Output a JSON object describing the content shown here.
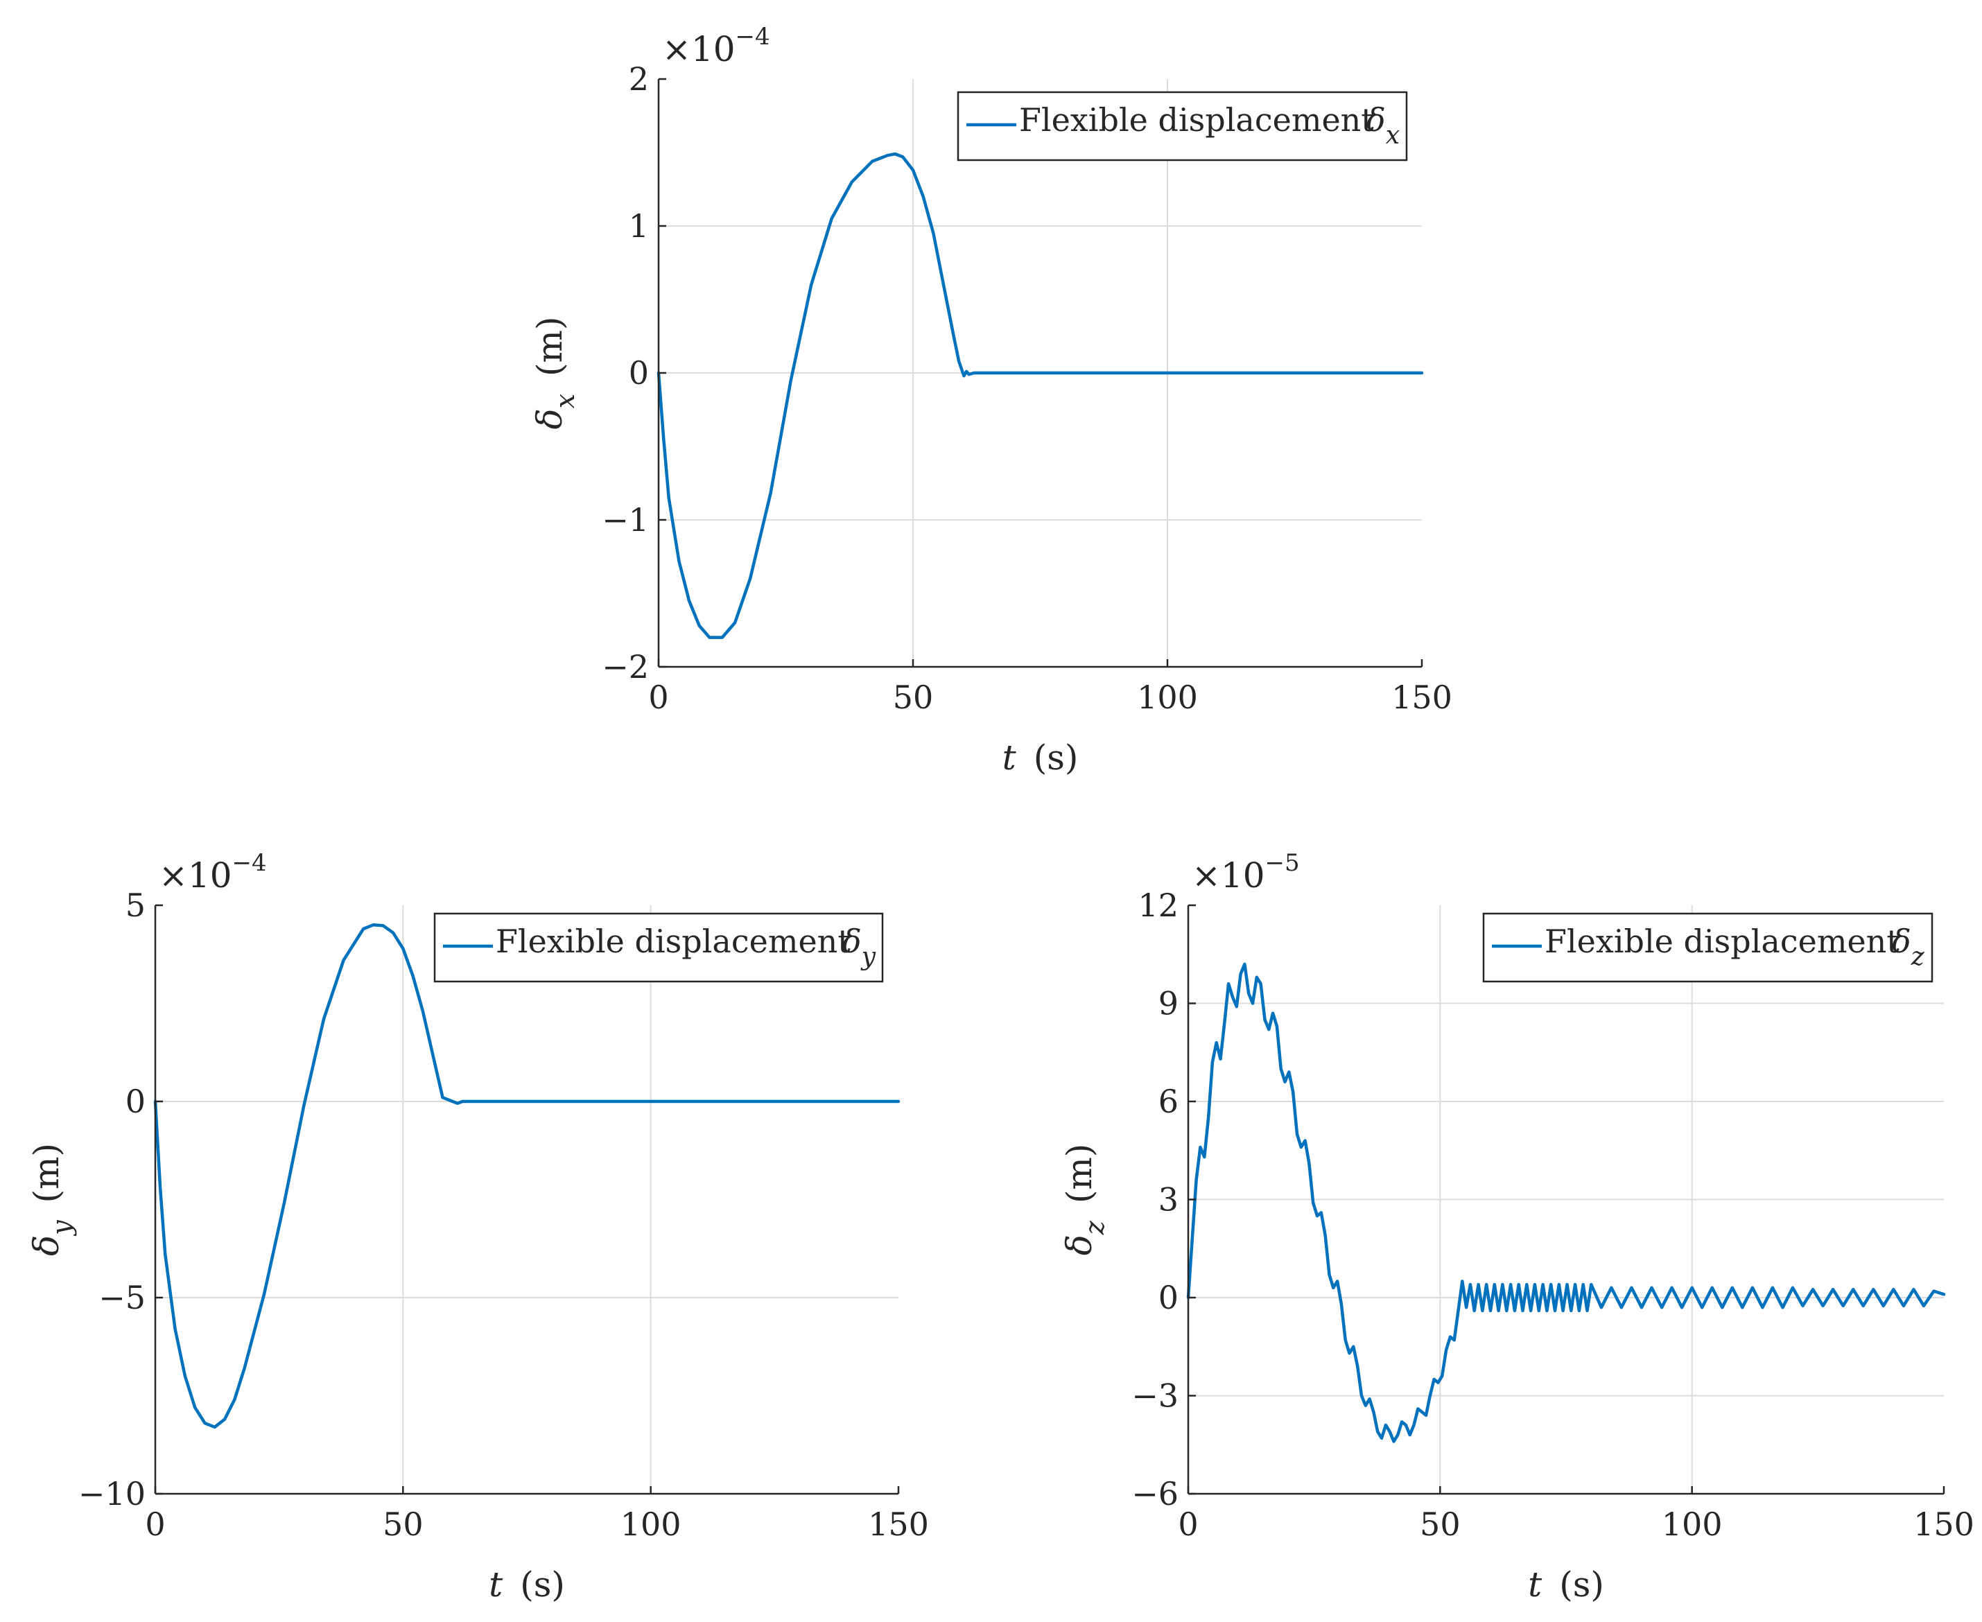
{
  "colors": {
    "line": "#0072BD",
    "grid": "#DCDCDC",
    "axis": "#262626"
  },
  "chart_data": [
    {
      "type": "line",
      "id": "dx",
      "xlabel": {
        "var": "t",
        "unit": "(s)"
      },
      "ylabel": {
        "var": "δ",
        "sub": "x",
        "unit": "(m)"
      },
      "legend": {
        "text": "Flexible displacement",
        "sym": "δ",
        "sub": "x",
        "placement": "top-right"
      },
      "exponent": {
        "base": "×10",
        "power": "−4"
      },
      "xlim": [
        0,
        150
      ],
      "ylim": [
        -2,
        2
      ],
      "xticks": [
        0,
        50,
        100,
        150
      ],
      "yticks": [
        -2,
        -1,
        0,
        1,
        2
      ],
      "xtick_labels": [
        "0",
        "50",
        "100",
        "150"
      ],
      "ytick_labels": [
        "−2",
        "−1",
        "0",
        "1",
        "2"
      ],
      "grid": true,
      "series": [
        {
          "x": [
            0,
            1,
            2,
            4,
            6,
            8,
            10,
            12.5,
            15,
            18,
            22,
            26,
            30,
            34,
            38,
            42,
            45,
            46.5,
            48,
            50,
            52,
            54,
            56,
            58,
            59,
            60,
            60.5,
            61,
            62,
            70,
            90,
            120,
            150
          ],
          "values": [
            0,
            -0.45,
            -0.85,
            -1.28,
            -1.55,
            -1.72,
            -1.8,
            -1.8,
            -1.7,
            -1.4,
            -0.82,
            -0.05,
            0.6,
            1.05,
            1.3,
            1.44,
            1.48,
            1.49,
            1.47,
            1.38,
            1.2,
            0.95,
            0.6,
            0.25,
            0.08,
            -0.02,
            0.01,
            -0.01,
            0,
            0,
            0,
            0,
            0
          ]
        }
      ]
    },
    {
      "type": "line",
      "id": "dy",
      "xlabel": {
        "var": "t",
        "unit": "(s)"
      },
      "ylabel": {
        "var": "δ",
        "sub": "y",
        "unit": "(m)"
      },
      "legend": {
        "text": "Flexible displacement",
        "sym": "δ",
        "sub": "y",
        "placement": "top-right"
      },
      "exponent": {
        "base": "×10",
        "power": "−4"
      },
      "xlim": [
        0,
        150
      ],
      "ylim": [
        -10,
        5
      ],
      "xticks": [
        0,
        50,
        100,
        150
      ],
      "yticks": [
        -10,
        -5,
        0,
        5
      ],
      "xtick_labels": [
        "0",
        "50",
        "100",
        "150"
      ],
      "ytick_labels": [
        "−10",
        "−5",
        "0",
        "5"
      ],
      "grid": true,
      "series": [
        {
          "x": [
            0,
            1,
            2,
            4,
            6,
            8,
            10,
            12,
            14,
            16,
            18,
            22,
            26,
            30,
            34,
            38,
            42,
            44,
            46,
            48,
            50,
            52,
            54,
            56,
            58,
            60,
            61,
            62,
            70,
            90,
            120,
            150
          ],
          "values": [
            0,
            -2.2,
            -3.9,
            -5.8,
            -7.0,
            -7.8,
            -8.2,
            -8.3,
            -8.1,
            -7.6,
            -6.8,
            -4.9,
            -2.6,
            -0.1,
            2.1,
            3.6,
            4.4,
            4.5,
            4.48,
            4.3,
            3.9,
            3.2,
            2.3,
            1.2,
            0.1,
            0,
            -0.05,
            0,
            0,
            0,
            0,
            0
          ]
        }
      ]
    },
    {
      "type": "line",
      "id": "dz",
      "xlabel": {
        "var": "t",
        "unit": "(s)"
      },
      "ylabel": {
        "var": "δ",
        "sub": "z",
        "unit": "(m)"
      },
      "legend": {
        "text": "Flexible displacement",
        "sym": "δ",
        "sub": "z",
        "placement": "top-right"
      },
      "exponent": {
        "base": "×10",
        "power": "−5"
      },
      "xlim": [
        0,
        150
      ],
      "ylim": [
        -6,
        12
      ],
      "xticks": [
        0,
        50,
        100,
        150
      ],
      "yticks": [
        -6,
        -3,
        0,
        3,
        6,
        9,
        12
      ],
      "xtick_labels": [
        "0",
        "50",
        "100",
        "150"
      ],
      "ytick_labels": [
        "−6",
        "−3",
        "0",
        "3",
        "6",
        "9",
        "12"
      ],
      "grid": true,
      "series": [
        {
          "x": [
            0,
            0.8,
            1.6,
            2.4,
            3.2,
            4.0,
            4.8,
            5.6,
            6.4,
            7.2,
            8.0,
            8.8,
            9.6,
            10.4,
            11.2,
            12.0,
            12.8,
            13.6,
            14.4,
            15.2,
            16.0,
            16.8,
            17.6,
            18.4,
            19.2,
            20.0,
            20.8,
            21.6,
            22.4,
            23.2,
            24.0,
            24.8,
            25.6,
            26.4,
            27.2,
            28.0,
            28.8,
            29.6,
            30.4,
            31.2,
            32.0,
            32.8,
            33.6,
            34.4,
            35.2,
            36.0,
            36.8,
            37.6,
            38.4,
            39.2,
            40.0,
            40.8,
            41.6,
            42.4,
            43.2,
            44.0,
            44.8,
            45.6,
            46.4,
            47.2,
            48.0,
            48.8,
            49.6,
            50.4,
            51.2,
            52.0,
            52.8,
            53.6,
            54.4,
            55.2,
            56.0,
            56.8,
            57.6,
            58.4,
            59.2,
            60.0,
            60.8,
            61.6,
            62.4,
            63.2,
            64.0,
            64.8,
            65.6,
            66.4,
            67.2,
            68.0,
            68.8,
            69.6,
            70.4,
            71.2,
            72.0,
            72.8,
            73.6,
            74.4,
            75.2,
            76.0,
            76.8,
            77.6,
            78.4,
            79.2,
            80.0,
            82,
            84,
            86,
            88,
            90,
            92,
            94,
            96,
            98,
            100,
            102,
            104,
            106,
            108,
            110,
            112,
            114,
            116,
            118,
            120,
            122,
            124,
            126,
            128,
            130,
            132,
            134,
            136,
            138,
            140,
            142,
            144,
            146,
            148,
            150
          ],
          "values": [
            0,
            1.8,
            3.6,
            4.6,
            4.3,
            5.5,
            7.2,
            7.8,
            7.3,
            8.4,
            9.6,
            9.2,
            8.9,
            9.9,
            10.2,
            9.3,
            9.0,
            9.8,
            9.6,
            8.5,
            8.2,
            8.7,
            8.3,
            7.0,
            6.6,
            6.9,
            6.3,
            5.0,
            4.6,
            4.8,
            4.1,
            2.9,
            2.5,
            2.6,
            1.9,
            0.7,
            0.3,
            0.5,
            -0.2,
            -1.3,
            -1.7,
            -1.5,
            -2.1,
            -3.0,
            -3.3,
            -3.1,
            -3.5,
            -4.1,
            -4.3,
            -3.9,
            -4.1,
            -4.4,
            -4.2,
            -3.8,
            -3.9,
            -4.2,
            -3.9,
            -3.4,
            -3.5,
            -3.6,
            -3.0,
            -2.5,
            -2.6,
            -2.4,
            -1.6,
            -1.2,
            -1.3,
            -0.4,
            0.5,
            -0.3,
            0.4,
            -0.4,
            0.4,
            -0.4,
            0.4,
            -0.4,
            0.4,
            -0.4,
            0.4,
            -0.4,
            0.4,
            -0.4,
            0.4,
            -0.4,
            0.4,
            -0.4,
            0.4,
            -0.4,
            0.4,
            -0.4,
            0.4,
            -0.4,
            0.4,
            -0.4,
            0.4,
            -0.4,
            0.4,
            -0.4,
            0.4,
            -0.4,
            0.4,
            -0.3,
            0.3,
            -0.3,
            0.3,
            -0.3,
            0.3,
            -0.3,
            0.3,
            -0.3,
            0.3,
            -0.3,
            0.3,
            -0.3,
            0.3,
            -0.3,
            0.3,
            -0.3,
            0.3,
            -0.3,
            0.3,
            -0.25,
            0.25,
            -0.25,
            0.25,
            -0.25,
            0.25,
            -0.25,
            0.25,
            -0.25,
            0.25,
            -0.25,
            0.25,
            -0.25,
            0.2,
            0.1
          ]
        }
      ]
    }
  ]
}
